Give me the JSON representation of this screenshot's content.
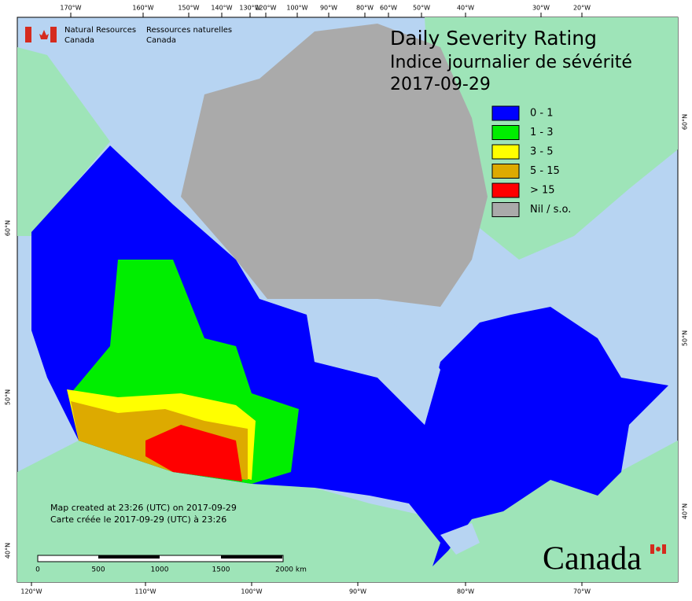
{
  "agency": {
    "en": [
      "Natural Resources",
      "Canada"
    ],
    "fr": [
      "Ressources naturelles",
      "Canada"
    ]
  },
  "title": [
    "Daily Severity Rating",
    "Indice journalier de sévérité",
    "2017-09-29"
  ],
  "legend": [
    {
      "label": "0 - 1",
      "color": "#0000ff"
    },
    {
      "label": "1 - 3",
      "color": "#00ee00"
    },
    {
      "label": "3 - 5",
      "color": "#ffff00"
    },
    {
      "label": "5 - 15",
      "color": "#ddaa00"
    },
    {
      "label": "> 15",
      "color": "#ff0000"
    },
    {
      "label": "Nil / s.o.",
      "color": "#aaaaaa"
    }
  ],
  "top_labels": [
    "170°W",
    "160°W",
    "150°W",
    "140°W",
    "130°W",
    "120°W",
    "100°W",
    "90°W",
    "80°W",
    "60°W",
    "50°W",
    "40°W",
    "30°W",
    "20°W"
  ],
  "bottom_labels": [
    "120°W",
    "110°W",
    "100°W",
    "90°W",
    "80°W",
    "70°W"
  ],
  "left_labels": [
    "60°N",
    "50°N",
    "40°N"
  ],
  "right_labels": [
    "60°N",
    "50°N",
    "40°N"
  ],
  "notes": [
    "Map created at 23:26 (UTC) on 2017-09-29",
    "Carte créée le 2017-09-29 (UTC) à 23:26"
  ],
  "scale_labels": [
    "0",
    "500",
    "1000",
    "1500",
    "2000 km"
  ],
  "wordmark": "Canada"
}
